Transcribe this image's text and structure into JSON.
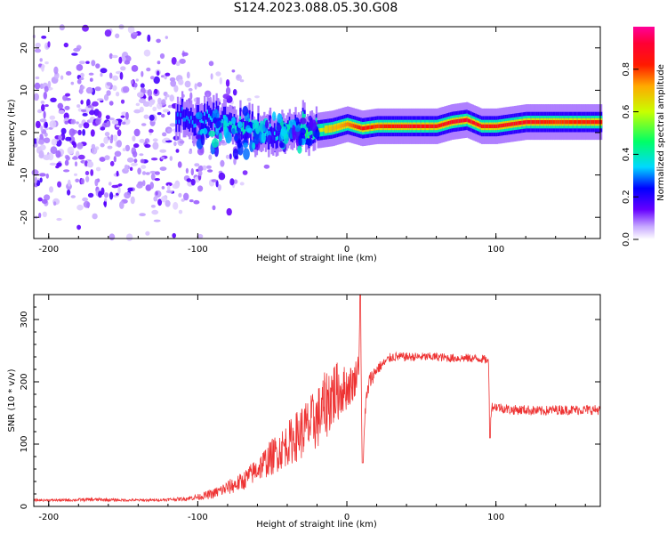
{
  "title": "S124.2023.088.05.30.G08",
  "chart_data": [
    {
      "type": "heatmap",
      "xlabel": "Height of straight line (km)",
      "ylabel": "Frequency (Hz)",
      "xlim": [
        -210,
        170
      ],
      "ylim": [
        -25,
        25
      ],
      "xticks": [
        "-200",
        "-100",
        "0",
        "100"
      ],
      "xtick_values": [
        -200,
        -100,
        0,
        100
      ],
      "yticks": [
        "-20",
        "-10",
        "0",
        "10",
        "20"
      ],
      "ytick_values": [
        -20,
        -10,
        0,
        10,
        20
      ],
      "colorbar": {
        "label": "Normalized spectral amplitude",
        "range": [
          0,
          1
        ],
        "ticks": [
          "0.0",
          "0.2",
          "0.4",
          "0.6",
          "0.8"
        ],
        "tick_values": [
          0.0,
          0.2,
          0.4,
          0.6,
          0.8
        ],
        "colormap": "rainbow (white-violet-blue-cyan-green-yellow-red-magenta)"
      },
      "ridge": {
        "x": [
          -110,
          -90,
          -70,
          -50,
          -30,
          -20,
          -10,
          0,
          10,
          20,
          40,
          60,
          70,
          80,
          90,
          100,
          120,
          140,
          170
        ],
        "frequency": [
          3,
          3,
          1,
          0,
          1,
          0.5,
          1,
          2,
          1,
          1.5,
          1.5,
          1.5,
          2.5,
          3,
          1.5,
          1.5,
          2.5,
          2.5,
          2.5
        ],
        "amplitude": [
          0.3,
          0.35,
          0.4,
          0.35,
          0.45,
          0.6,
          0.7,
          0.75,
          0.85,
          0.8,
          0.88,
          0.85,
          0.88,
          0.9,
          0.85,
          0.85,
          0.88,
          0.8,
          0.85
        ]
      }
    },
    {
      "type": "line",
      "xlabel": "Height of straight line (km)",
      "ylabel": "SNR (10 * v/v)",
      "xlim": [
        -210,
        170
      ],
      "ylim": [
        0,
        340
      ],
      "xticks": [
        "-200",
        "-100",
        "0",
        "100"
      ],
      "xtick_values": [
        -200,
        -100,
        0,
        100
      ],
      "yticks": [
        "0",
        "100",
        "200",
        "300"
      ],
      "ytick_values": [
        0,
        100,
        200,
        300
      ],
      "line_color": "#ee3333",
      "series": [
        {
          "x": [
            -210,
            -190,
            -170,
            -150,
            -130,
            -110,
            -100,
            -90,
            -80,
            -70,
            -60,
            -50,
            -40,
            -30,
            -20,
            -15,
            -10,
            -5,
            0,
            5,
            8,
            9,
            10,
            11,
            12,
            15,
            20,
            25,
            30,
            40,
            50,
            60,
            70,
            80,
            90,
            94,
            95,
            96,
            97,
            100,
            110,
            120,
            130,
            140,
            150,
            160,
            170
          ],
          "y": [
            10,
            10,
            11,
            10,
            10,
            12,
            15,
            20,
            30,
            40,
            60,
            80,
            100,
            120,
            140,
            160,
            180,
            185,
            190,
            200,
            230,
            340,
            120,
            70,
            150,
            200,
            220,
            230,
            240,
            240,
            240,
            240,
            238,
            238,
            237,
            235,
            230,
            120,
            160,
            160,
            155,
            155,
            153,
            155,
            155,
            155,
            155
          ],
          "noise": [
            2,
            2,
            3,
            2,
            2,
            3,
            5,
            8,
            12,
            15,
            20,
            30,
            35,
            45,
            50,
            55,
            60,
            45,
            35,
            30,
            20,
            0,
            0,
            0,
            20,
            15,
            10,
            8,
            8,
            7,
            7,
            7,
            7,
            7,
            7,
            7,
            7,
            0,
            8,
            8,
            8,
            8,
            8,
            8,
            8,
            8,
            8
          ]
        }
      ]
    }
  ]
}
